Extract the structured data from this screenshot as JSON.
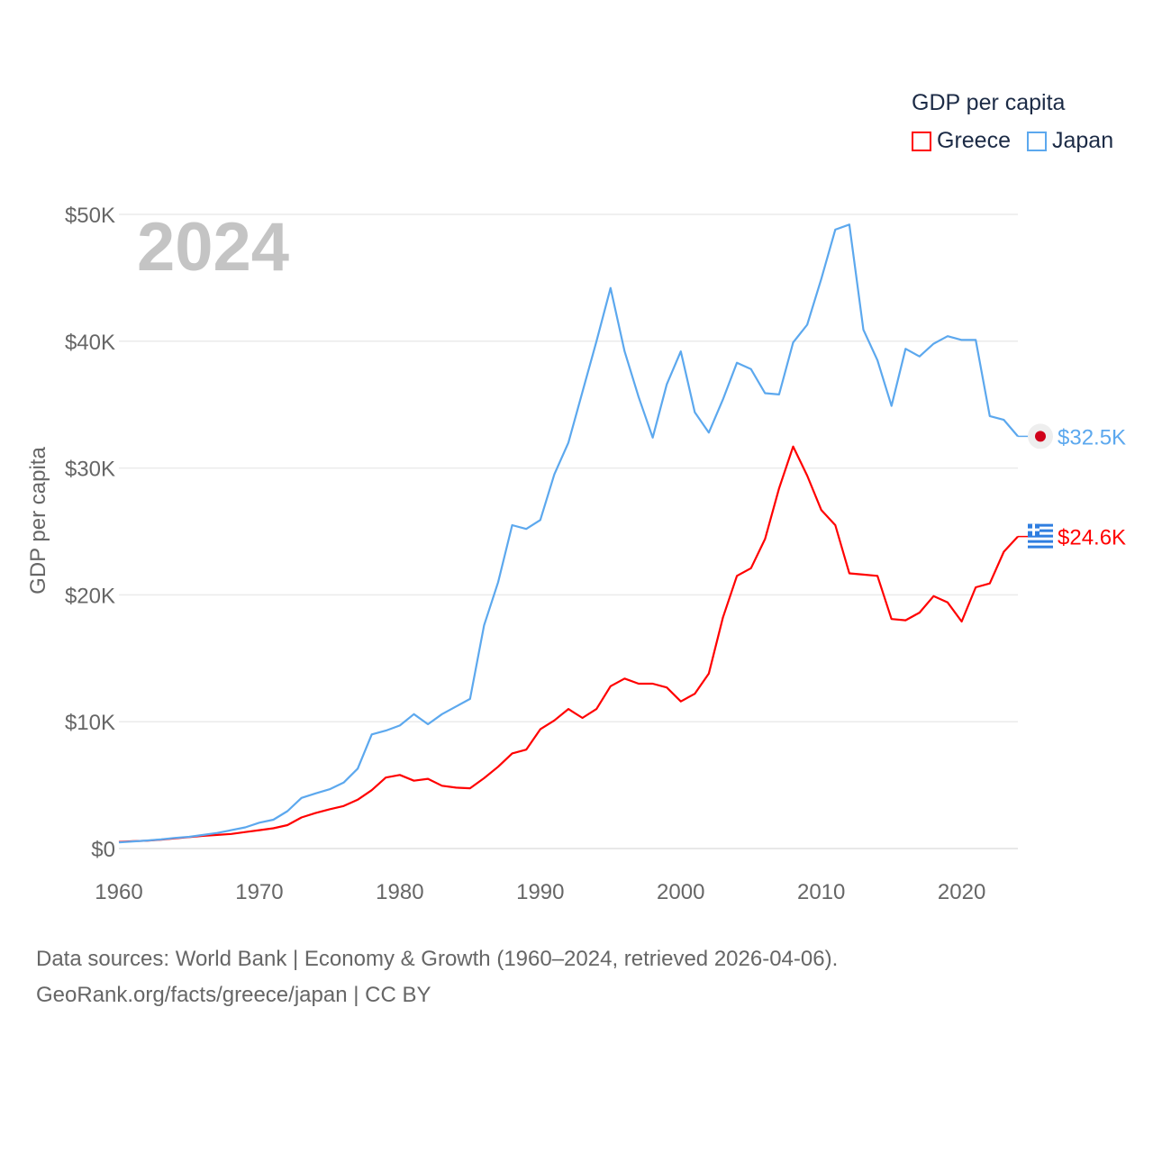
{
  "chart_data": {
    "type": "line",
    "year_label": "2024",
    "ylabel": "GDP per capita",
    "ylim": [
      0,
      50000
    ],
    "xlim": [
      1960,
      2024
    ],
    "yticks": [
      {
        "v": 0,
        "label": "$0"
      },
      {
        "v": 10000,
        "label": "$10K"
      },
      {
        "v": 20000,
        "label": "$20K"
      },
      {
        "v": 30000,
        "label": "$30K"
      },
      {
        "v": 40000,
        "label": "$40K"
      },
      {
        "v": 50000,
        "label": "$50K"
      }
    ],
    "xticks": [
      {
        "v": 1960,
        "label": "1960"
      },
      {
        "v": 1970,
        "label": "1970"
      },
      {
        "v": 1980,
        "label": "1980"
      },
      {
        "v": 1990,
        "label": "1990"
      },
      {
        "v": 2000,
        "label": "2000"
      },
      {
        "v": 2010,
        "label": "2010"
      },
      {
        "v": 2020,
        "label": "2020"
      }
    ],
    "grid": true,
    "legend": {
      "title": "GDP per capita",
      "placement": "top-right"
    },
    "x_start": 1960,
    "series": [
      {
        "name": "Greece",
        "color": "#ff0000",
        "end_label": "$24.6K",
        "flag": "greece-flag",
        "values": [
          520,
          580,
          620,
          700,
          800,
          900,
          1000,
          1070,
          1150,
          1300,
          1450,
          1600,
          1850,
          2450,
          2800,
          3100,
          3350,
          3850,
          4600,
          5600,
          5800,
          5350,
          5500,
          4950,
          4800,
          4750,
          5550,
          6450,
          7500,
          7800,
          9400,
          10100,
          11000,
          10300,
          11000,
          12800,
          13400,
          13000,
          13000,
          12700,
          11600,
          12200,
          13800,
          18200,
          21500,
          22100,
          24400,
          28400,
          31700,
          29400,
          26700,
          25500,
          21700,
          21600,
          21500,
          18100,
          18000,
          18600,
          19900,
          19400,
          17900,
          20600,
          20900,
          23400,
          24600
        ]
      },
      {
        "name": "Japan",
        "color": "#5ca8ee",
        "end_label": "$32.5K",
        "flag": "japan-flag",
        "values": [
          480,
          560,
          630,
          720,
          840,
          920,
          1070,
          1230,
          1450,
          1670,
          2040,
          2270,
          2950,
          3990,
          4350,
          4670,
          5200,
          6300,
          9000,
          9300,
          9700,
          10600,
          9800,
          10600,
          11200,
          11800,
          17600,
          21000,
          25500,
          25200,
          25900,
          29500,
          32000,
          36000,
          40000,
          44200,
          39200,
          35600,
          32400,
          36600,
          39200,
          34400,
          32800,
          35400,
          38300,
          37800,
          35900,
          35800,
          39900,
          41300,
          44900,
          48800,
          49200,
          40900,
          38500,
          34900,
          39400,
          38800,
          39800,
          40400,
          40100,
          40100,
          34100,
          33800,
          32500
        ]
      }
    ]
  },
  "footer": {
    "line1": "Data sources: World Bank | Economy & Growth (1960–2024, retrieved 2026-04-06).",
    "line2": "GeoRank.org/facts/greece/japan | CC BY"
  }
}
